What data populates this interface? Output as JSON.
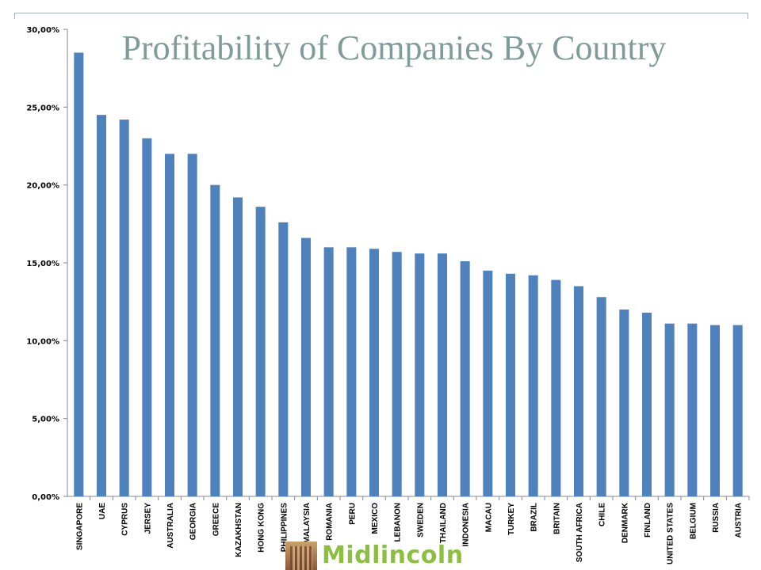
{
  "chart_data": {
    "type": "bar",
    "title": "Profitability of Companies By Country",
    "xlabel": "",
    "ylabel": "",
    "ylim": [
      0,
      30
    ],
    "yticks": [
      0,
      5,
      10,
      15,
      20,
      25,
      30
    ],
    "ytick_labels": [
      "0,00%",
      "5,00%",
      "10,00%",
      "15,00%",
      "20,00%",
      "25,00%",
      "30,00%"
    ],
    "grid": false,
    "legend": "none",
    "bar_color": "#4f81bd",
    "categories": [
      "SINGAPORE",
      "UAE",
      "CYPRUS",
      "JERSEY",
      "AUSTRALIA",
      "GEORGIA",
      "GREECE",
      "KAZAKHSTAN",
      "HONG KONG",
      "PHILIPPINES",
      "MALAYSIA",
      "ROMANIA",
      "PERU",
      "MEXICO",
      "LEBANON",
      "SWEDEN",
      "THAILAND",
      "INDONESIA",
      "MACAU",
      "TURKEY",
      "BRAZIL",
      "BRITAIN",
      "SOUTH AFRICA",
      "CHILE",
      "DENMARK",
      "FINLAND",
      "UNITED STATES",
      "BELGIUM",
      "RUSSIA",
      "AUSTRIA"
    ],
    "values": [
      28.5,
      24.5,
      24.2,
      23.0,
      22.0,
      22.0,
      20.0,
      19.2,
      18.6,
      17.6,
      16.6,
      16.0,
      16.0,
      15.9,
      15.7,
      15.6,
      15.6,
      15.1,
      14.5,
      14.3,
      14.2,
      13.9,
      13.5,
      12.8,
      12.0,
      11.8,
      11.1,
      11.1,
      11.0,
      11.0
    ]
  },
  "logo": {
    "text": "Midlincoln"
  }
}
